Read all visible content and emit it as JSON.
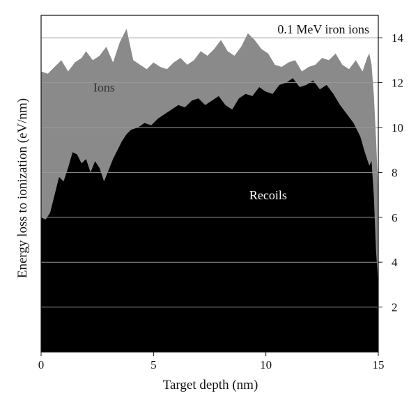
{
  "chart_data": {
    "type": "area",
    "title": "0.1 MeV iron ions",
    "xlabel": "Target depth (nm)",
    "ylabel": "Energy loss to ionization (eV/nm)",
    "xlim": [
      0,
      15
    ],
    "ylim": [
      0,
      15
    ],
    "x_ticks": [
      "0",
      "5",
      "10",
      "15"
    ],
    "y_ticks": [
      "2",
      "4",
      "6",
      "8",
      "10",
      "12",
      "14"
    ],
    "grid": "horizontal",
    "colors": {
      "ions": "#8a8a8a",
      "recoils": "#000000",
      "background": "#ffffff",
      "gridline": "#9a9a9a"
    },
    "series": [
      {
        "name": "Ions",
        "stacked_top": true,
        "x": [
          0,
          0.3,
          0.6,
          0.9,
          1.2,
          1.5,
          1.8,
          2.0,
          2.3,
          2.6,
          2.9,
          3.2,
          3.5,
          3.8,
          4.1,
          4.4,
          4.7,
          5.0,
          5.3,
          5.6,
          5.9,
          6.2,
          6.5,
          6.8,
          7.1,
          7.4,
          7.7,
          8.0,
          8.3,
          8.6,
          8.9,
          9.2,
          9.5,
          9.8,
          10.1,
          10.4,
          10.7,
          11.0,
          11.3,
          11.6,
          11.9,
          12.2,
          12.5,
          12.8,
          13.1,
          13.4,
          13.7,
          14.0,
          14.3,
          14.5,
          14.6,
          14.7,
          14.8,
          14.9,
          15.0
        ],
        "values": [
          12.5,
          12.4,
          12.7,
          13.0,
          12.5,
          12.9,
          13.1,
          13.4,
          13.0,
          13.2,
          13.6,
          12.9,
          13.8,
          14.4,
          13.0,
          12.8,
          12.6,
          12.9,
          12.7,
          12.6,
          12.9,
          13.1,
          12.8,
          13.0,
          13.4,
          13.2,
          13.5,
          13.9,
          13.4,
          13.2,
          13.6,
          14.2,
          13.9,
          13.5,
          13.3,
          12.8,
          12.7,
          12.9,
          13.0,
          12.5,
          12.7,
          12.8,
          13.1,
          13.0,
          13.3,
          12.8,
          12.6,
          13.0,
          12.5,
          13.1,
          13.3,
          12.8,
          11.5,
          9.5,
          7.0
        ]
      },
      {
        "name": "Recoils",
        "x": [
          0,
          0.2,
          0.4,
          0.6,
          0.8,
          1.0,
          1.2,
          1.4,
          1.6,
          1.8,
          2.0,
          2.2,
          2.4,
          2.6,
          2.8,
          3.0,
          3.2,
          3.4,
          3.6,
          3.8,
          4.0,
          4.3,
          4.6,
          4.9,
          5.2,
          5.5,
          5.8,
          6.1,
          6.4,
          6.7,
          7.0,
          7.3,
          7.6,
          7.9,
          8.2,
          8.5,
          8.8,
          9.1,
          9.4,
          9.7,
          10.0,
          10.3,
          10.6,
          10.9,
          11.2,
          11.5,
          11.8,
          12.1,
          12.4,
          12.7,
          13.0,
          13.3,
          13.6,
          13.9,
          14.2,
          14.4,
          14.6,
          14.7,
          14.8,
          14.9,
          15.0
        ],
        "values": [
          6.0,
          5.9,
          6.2,
          7.0,
          7.8,
          7.6,
          8.2,
          8.9,
          8.8,
          8.4,
          8.6,
          8.0,
          8.5,
          8.2,
          7.6,
          8.1,
          8.6,
          9.0,
          9.4,
          9.7,
          9.9,
          10.0,
          10.2,
          10.1,
          10.4,
          10.6,
          10.8,
          11.0,
          10.9,
          11.2,
          11.3,
          11.0,
          11.2,
          11.4,
          11.0,
          10.8,
          11.3,
          11.5,
          11.4,
          11.8,
          11.6,
          11.5,
          11.9,
          12.0,
          12.2,
          11.8,
          11.9,
          12.1,
          11.7,
          11.9,
          11.5,
          11.0,
          10.6,
          10.2,
          9.6,
          8.9,
          8.3,
          8.5,
          7.0,
          4.5,
          3.0
        ]
      }
    ],
    "annotations": [
      {
        "text": "Ions",
        "x": 2.8,
        "y": 11.6,
        "color": "#333333"
      },
      {
        "text": "Recoils",
        "x": 10.1,
        "y": 6.8,
        "color": "#ffffff"
      }
    ]
  }
}
